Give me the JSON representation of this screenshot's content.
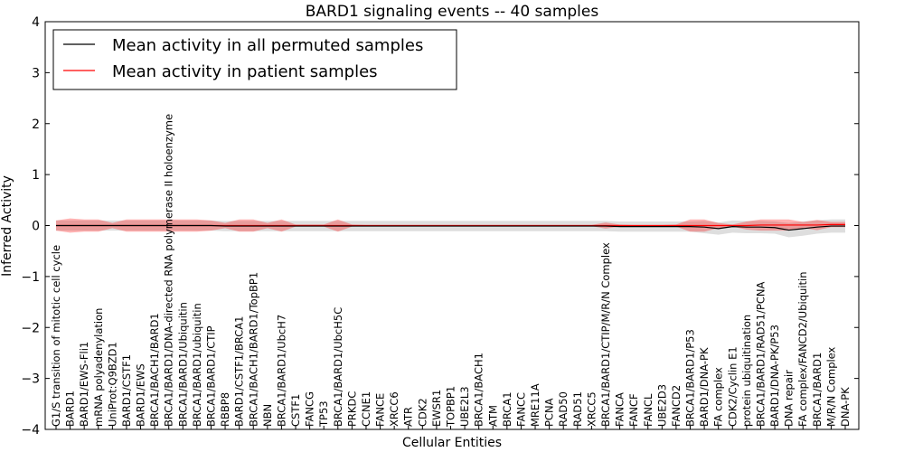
{
  "chart_data": {
    "type": "line",
    "title": "BARD1 signaling events -- 40 samples",
    "xlabel": "Cellular Entities",
    "ylabel": "Inferred Activity",
    "ylim": [
      -4,
      4
    ],
    "yticks": [
      "-4",
      "-3",
      "-2",
      "-1",
      "0",
      "1",
      "2",
      "3",
      "4"
    ],
    "legend": {
      "position": "top-left",
      "entries": [
        {
          "label": "Mean activity in all permuted samples",
          "color": "#000000"
        },
        {
          "label": "Mean activity in patient samples",
          "color": "#ff0000"
        }
      ]
    },
    "categories": [
      "G1/S transition of mitotic cell cycle",
      "BARD1",
      "BARD1/EWS-Fli1",
      "mRNA polyadenylation",
      "UniProt:Q9BZD1",
      "BARD1/CSTF1",
      "BARD1/EWS",
      "BRCA1/BACH1/BARD1",
      "BRCA1/BARD1/DNA-directed RNA polymerase II holoenzyme",
      "BRCA1/BARD1/Ubiquitin",
      "BRCA1/BARD1/ubiquitin",
      "BRCA1/BARD1/CTIP",
      "RBBP8",
      "BARD1/CSTF1/BRCA1",
      "BRCA1/BACH1/BARD1/TopBP1",
      "NBN",
      "BRCA1/BARD1/UbcH7",
      "CSTF1",
      "FANCG",
      "TP53",
      "BRCA1/BARD1/UbcH5C",
      "PRKDC",
      "CCNE1",
      "FANCE",
      "XRCC6",
      "ATR",
      "CDK2",
      "EWSR1",
      "TOPBP1",
      "UBE2L3",
      "BRCA1/BACH1",
      "ATM",
      "BRCA1",
      "FANCC",
      "MRE11A",
      "PCNA",
      "RAD50",
      "RAD51",
      "XRCC5",
      "BRCA1/BARD1/CTIP/M/R/N Complex",
      "FANCA",
      "FANCF",
      "FANCL",
      "UBE2D3",
      "FANCD2",
      "BRCA1/BARD1/P53",
      "BARD1/DNA-PK",
      "FA complex",
      "CDK2/Cyclin E1",
      "protein ubiquitination",
      "BRCA1/BARD1/RAD51/PCNA",
      "BARD1/DNA-PK/P53",
      "DNA repair",
      "FA complex/FANCD2/Ubiquitin",
      "BRCA1/BARD1",
      "M/R/N Complex",
      "DNA-PK"
    ],
    "series": [
      {
        "name": "Mean activity in all permuted samples",
        "color": "#000000",
        "values": [
          0,
          0,
          0,
          0,
          0,
          0,
          0,
          0,
          0,
          0,
          0,
          0,
          -0.01,
          -0.01,
          -0.01,
          -0.01,
          -0.01,
          -0.01,
          -0.01,
          -0.01,
          -0.01,
          -0.01,
          -0.01,
          -0.01,
          -0.01,
          -0.01,
          -0.01,
          -0.01,
          -0.01,
          -0.01,
          -0.01,
          -0.01,
          -0.01,
          -0.01,
          -0.01,
          -0.01,
          -0.01,
          -0.01,
          -0.01,
          -0.01,
          -0.02,
          -0.02,
          -0.02,
          -0.02,
          -0.02,
          -0.02,
          -0.03,
          -0.06,
          -0.02,
          -0.03,
          -0.03,
          -0.04,
          -0.09,
          -0.06,
          -0.03,
          -0.01,
          -0.01
        ],
        "band": [
          0.1,
          0.1,
          0.1,
          0.1,
          0.1,
          0.1,
          0.1,
          0.1,
          0.1,
          0.1,
          0.1,
          0.1,
          0.1,
          0.1,
          0.1,
          0.1,
          0.1,
          0.1,
          0.1,
          0.1,
          0.1,
          0.1,
          0.1,
          0.1,
          0.1,
          0.1,
          0.1,
          0.1,
          0.1,
          0.1,
          0.1,
          0.1,
          0.1,
          0.1,
          0.1,
          0.1,
          0.1,
          0.1,
          0.1,
          0.1,
          0.1,
          0.1,
          0.1,
          0.1,
          0.1,
          0.1,
          0.12,
          0.12,
          0.12,
          0.12,
          0.12,
          0.12,
          0.14,
          0.14,
          0.13,
          0.13,
          0.13
        ]
      },
      {
        "name": "Mean activity in patient samples",
        "color": "#ff0000",
        "values": [
          0,
          0,
          0,
          0,
          0,
          0,
          0,
          0,
          0,
          0,
          0,
          0,
          0,
          0,
          0,
          0,
          0,
          0,
          0,
          0,
          0,
          0,
          0,
          0,
          0,
          0,
          0,
          0,
          0,
          0,
          0,
          0,
          0,
          0,
          0,
          0,
          0,
          0,
          0,
          0,
          0,
          0,
          0,
          0,
          0,
          0,
          0,
          0,
          0,
          0,
          0.01,
          0.01,
          0.01,
          0.01,
          0.01,
          0.02,
          0.02
        ],
        "band": [
          0.1,
          0.14,
          0.12,
          0.12,
          0.05,
          0.12,
          0.12,
          0.12,
          0.12,
          0.12,
          0.12,
          0.1,
          0.05,
          0.12,
          0.12,
          0.05,
          0.12,
          0.02,
          0.02,
          0.02,
          0.12,
          0.02,
          0.01,
          0.01,
          0.01,
          0.01,
          0.01,
          0.01,
          0.01,
          0.01,
          0.01,
          0.01,
          0.01,
          0.01,
          0.01,
          0.01,
          0.01,
          0.01,
          0.01,
          0.06,
          0.02,
          0.01,
          0.01,
          0.01,
          0.02,
          0.12,
          0.12,
          0.05,
          0.02,
          0.08,
          0.11,
          0.11,
          0.11,
          0.06,
          0.1,
          0.05,
          0.05
        ]
      }
    ]
  }
}
